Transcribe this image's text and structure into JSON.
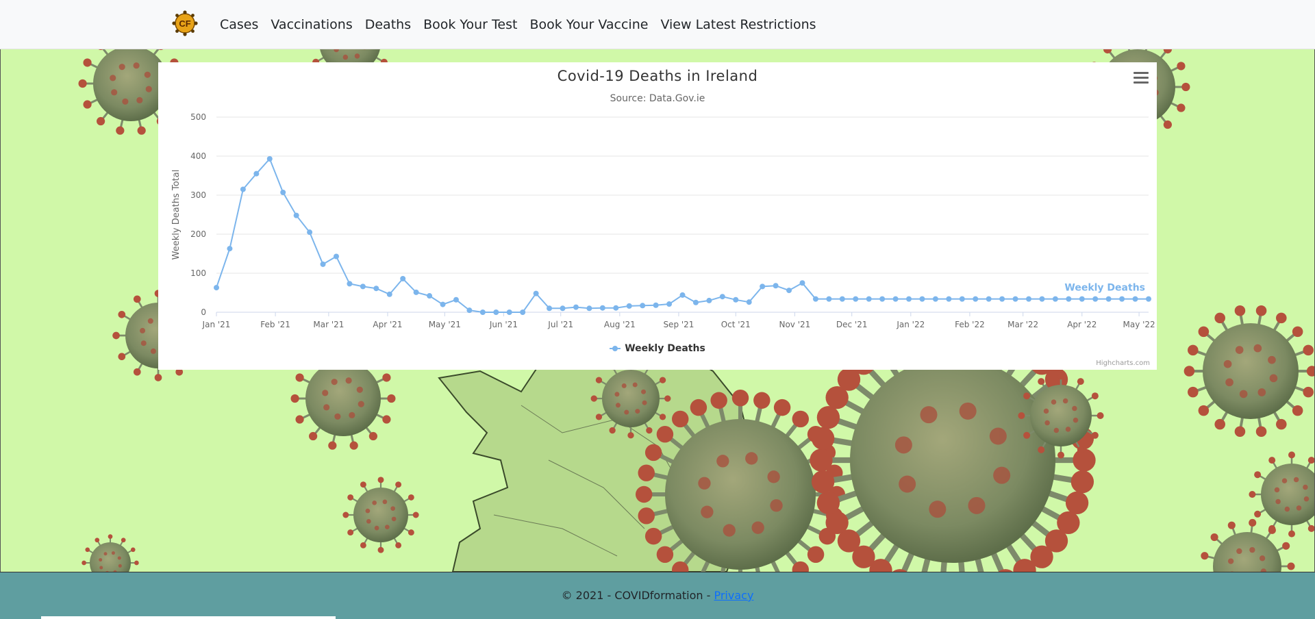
{
  "navbar": {
    "logo_text": "CF",
    "links": [
      "Cases",
      "Vaccinations",
      "Deaths",
      "Book Your Test",
      "Book Your Vaccine",
      "View Latest Restrictions"
    ]
  },
  "chart": {
    "title": "Covid-19 Deaths in Ireland",
    "subtitle": "Source: Data.Gov.ie",
    "menu_icon": "hamburger-menu-icon",
    "credits": "Highcharts.com",
    "legend_label": "Weekly Deaths",
    "series_color": "#7cb5ec"
  },
  "chart_data": {
    "type": "line",
    "title": "Covid-19 Deaths in Ireland",
    "subtitle": "Source: Data.Gov.ie",
    "xlabel": "",
    "ylabel": "Weekly Deaths Total",
    "ylim": [
      0,
      500
    ],
    "yticks": [
      0,
      100,
      200,
      300,
      400,
      500
    ],
    "xtick_labels": [
      "Jan '21",
      "Feb '21",
      "Mar '21",
      "Apr '21",
      "May '21",
      "Jun '21",
      "Jul '21",
      "Aug '21",
      "Sep '21",
      "Oct '21",
      "Nov '21",
      "Dec '21",
      "Jan '22",
      "Feb '22",
      "Mar '22",
      "Apr '22",
      "May '22"
    ],
    "grid": true,
    "legend": "bottom-center",
    "series": [
      {
        "name": "Weekly Deaths",
        "color": "#7cb5ec",
        "x": [
          "2021-01-01",
          "2021-01-08",
          "2021-01-15",
          "2021-01-22",
          "2021-01-29",
          "2021-02-05",
          "2021-02-12",
          "2021-02-19",
          "2021-02-26",
          "2021-03-05",
          "2021-03-12",
          "2021-03-19",
          "2021-03-26",
          "2021-04-02",
          "2021-04-09",
          "2021-04-16",
          "2021-04-23",
          "2021-04-30",
          "2021-05-07",
          "2021-05-14",
          "2021-05-21",
          "2021-05-28",
          "2021-06-04",
          "2021-06-11",
          "2021-06-18",
          "2021-06-25",
          "2021-07-02",
          "2021-07-09",
          "2021-07-16",
          "2021-07-23",
          "2021-07-30",
          "2021-08-06",
          "2021-08-13",
          "2021-08-20",
          "2021-08-27",
          "2021-09-03",
          "2021-09-10",
          "2021-09-17",
          "2021-09-24",
          "2021-10-01",
          "2021-10-08",
          "2021-10-15",
          "2021-10-22",
          "2021-10-29",
          "2021-11-05",
          "2021-11-12",
          "2021-11-19",
          "2021-11-26",
          "2021-12-03",
          "2021-12-10",
          "2021-12-17",
          "2021-12-24",
          "2021-12-31",
          "2022-01-07",
          "2022-01-14",
          "2022-01-21",
          "2022-01-28",
          "2022-02-04",
          "2022-02-11",
          "2022-02-18",
          "2022-02-25",
          "2022-03-04",
          "2022-03-11",
          "2022-03-18",
          "2022-03-25",
          "2022-04-01",
          "2022-04-08",
          "2022-04-15",
          "2022-04-22",
          "2022-04-29",
          "2022-05-06"
        ],
        "values": [
          63,
          163,
          315,
          355,
          393,
          307,
          248,
          205,
          123,
          143,
          73,
          66,
          61,
          46,
          86,
          51,
          42,
          20,
          32,
          5,
          0,
          0,
          0,
          0,
          48,
          10,
          10,
          13,
          10,
          11,
          11,
          16,
          17,
          18,
          21,
          44,
          25,
          30,
          40,
          32,
          26,
          66,
          68,
          56,
          75,
          34,
          34,
          34,
          34,
          34,
          34,
          34,
          34,
          34,
          34,
          34,
          34,
          34,
          34,
          34,
          34,
          34,
          34,
          34,
          34,
          34,
          34,
          34,
          34,
          34,
          34
        ]
      }
    ]
  },
  "footer": {
    "copyright": "© 2021 - COVIDformation - ",
    "privacy_label": "Privacy"
  }
}
